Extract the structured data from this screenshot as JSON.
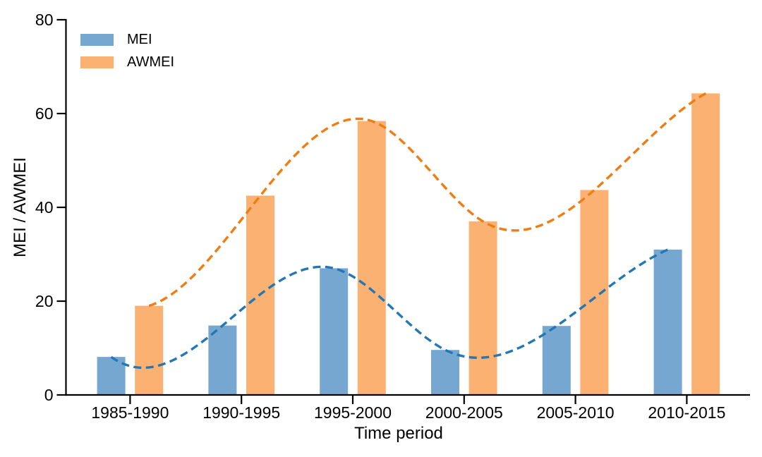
{
  "chart_data": {
    "type": "bar",
    "categories": [
      "1985-1990",
      "1990-1995",
      "1995-2000",
      "2000-2005",
      "2005-2010",
      "2010-2015"
    ],
    "series": [
      {
        "name": "MEI",
        "values": [
          8.1,
          14.8,
          27.0,
          9.6,
          14.7,
          31.0
        ],
        "bar_color": "#76a7d0",
        "line_color": "#2377b4"
      },
      {
        "name": "AWMEI",
        "values": [
          19.0,
          42.5,
          58.4,
          37.0,
          43.7,
          64.3
        ],
        "bar_color": "#fab172",
        "line_color": "#ef7d12"
      }
    ],
    "title": "",
    "xlabel": "Time period",
    "ylabel": "MEI / AWMEI",
    "ylim": [
      0,
      80
    ],
    "yticks": [
      0,
      20,
      40,
      60,
      80
    ],
    "grid": false,
    "legend_position": "upper left",
    "overlay": "dashed cubic-spline trend line per series through bar tops",
    "axis_color": "#000000",
    "background_color": "#ffffff"
  }
}
